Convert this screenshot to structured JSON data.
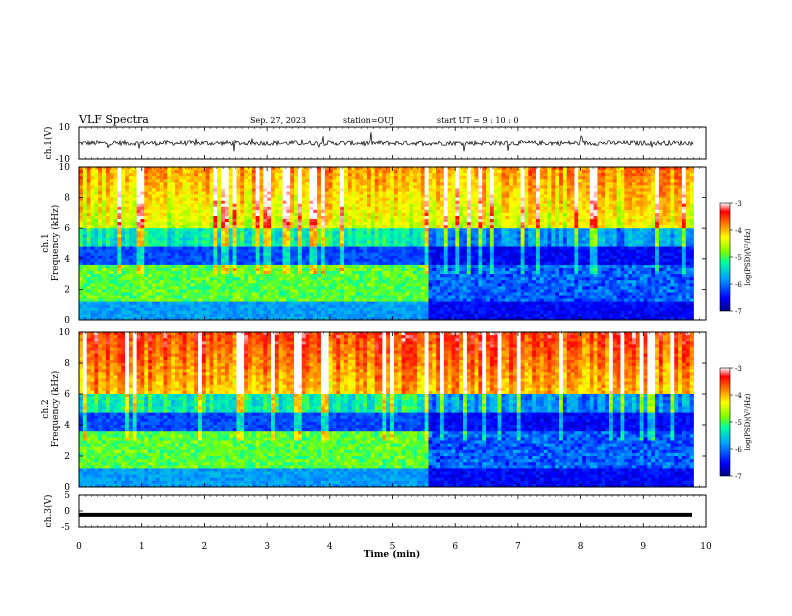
{
  "header": {
    "title": "VLF Spectra",
    "date": "Sep. 27, 2023",
    "station": "station=OUJ",
    "start": "start UT =  9 : 10 : 0"
  },
  "chart_data": [
    {
      "type": "line",
      "name": "ch1-waveform",
      "ylabel": "ch.1(V)",
      "ylim": [
        -10,
        10
      ],
      "yticks": [
        "10",
        "-10"
      ],
      "xlim": [
        0,
        10
      ],
      "mean": 0,
      "noise_amplitude": 1.5
    },
    {
      "type": "heatmap",
      "name": "ch1-spectrogram",
      "ylabel": "ch.1\nFrequency (kHz)",
      "ylim": [
        0,
        10
      ],
      "yticks": [
        "0",
        "2",
        "4",
        "6",
        "8",
        "10"
      ],
      "xlim": [
        0,
        10
      ],
      "data_end_min": 9.8,
      "transition_min": 5.6,
      "colorbar": {
        "label": "log(PSD)(V²/Hz)",
        "range": [
          -7,
          -3
        ],
        "ticks": [
          "-3",
          "-4",
          "-5",
          "-6",
          "-7"
        ]
      }
    },
    {
      "type": "heatmap",
      "name": "ch2-spectrogram",
      "ylabel": "ch.2\nFrequency (kHz)",
      "ylim": [
        0,
        10
      ],
      "yticks": [
        "0",
        "2",
        "4",
        "6",
        "8",
        "10"
      ],
      "xlim": [
        0,
        10
      ],
      "data_end_min": 9.8,
      "transition_min": 5.6,
      "colorbar": {
        "label": "log(PSD)(V²/Hz)",
        "range": [
          -7,
          -3
        ],
        "ticks": [
          "-3",
          "-4",
          "-5",
          "-6",
          "-7"
        ]
      }
    },
    {
      "type": "line",
      "name": "ch3-signal",
      "ylabel": "ch.3(V)",
      "ylim": [
        -5,
        5
      ],
      "yticks": [
        "5",
        "0",
        "-5"
      ],
      "xlim": [
        0,
        10
      ],
      "level": -1.2
    }
  ],
  "xaxis": {
    "label": "Time (min)",
    "ticks": [
      "0",
      "1",
      "2",
      "3",
      "4",
      "5",
      "6",
      "7",
      "8",
      "9",
      "10"
    ]
  },
  "colors": {
    "scale": [
      "#000080",
      "#0000ff",
      "#00a0ff",
      "#00ffa0",
      "#80ff00",
      "#ffff00",
      "#ff8000",
      "#ff0000",
      "#ffffff"
    ]
  }
}
